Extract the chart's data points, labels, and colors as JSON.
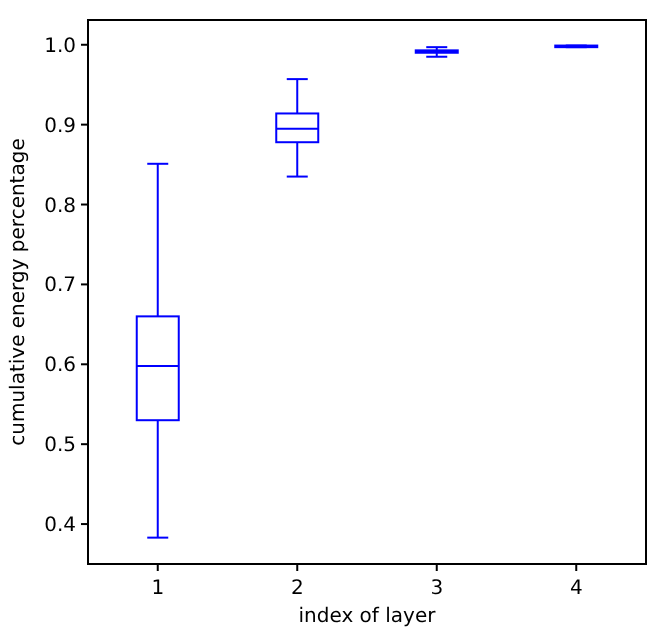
{
  "chart_data": {
    "type": "box",
    "xlabel": "index of layer",
    "ylabel": "cumulative energy percentage",
    "categories": [
      "1",
      "2",
      "3",
      "4"
    ],
    "color": "#0000ff",
    "ylim": [
      0.35,
      1.031
    ],
    "yticks": [
      {
        "value": 0.4,
        "label": "0.4"
      },
      {
        "value": 0.5,
        "label": "0.5"
      },
      {
        "value": 0.6,
        "label": "0.6"
      },
      {
        "value": 0.7,
        "label": "0.7"
      },
      {
        "value": 0.8,
        "label": "0.8"
      },
      {
        "value": 0.9,
        "label": "0.9"
      },
      {
        "value": 1.0,
        "label": "1.0"
      }
    ],
    "boxes": [
      {
        "low": 0.383,
        "q1": 0.53,
        "median": 0.598,
        "q3": 0.66,
        "high": 0.851
      },
      {
        "low": 0.835,
        "q1": 0.878,
        "median": 0.895,
        "q3": 0.914,
        "high": 0.957
      },
      {
        "low": 0.985,
        "q1": 0.99,
        "median": 0.991,
        "q3": 0.993,
        "high": 0.997
      },
      {
        "low": 0.997,
        "q1": 0.997,
        "median": 0.998,
        "q3": 0.999,
        "high": 0.999
      }
    ]
  }
}
